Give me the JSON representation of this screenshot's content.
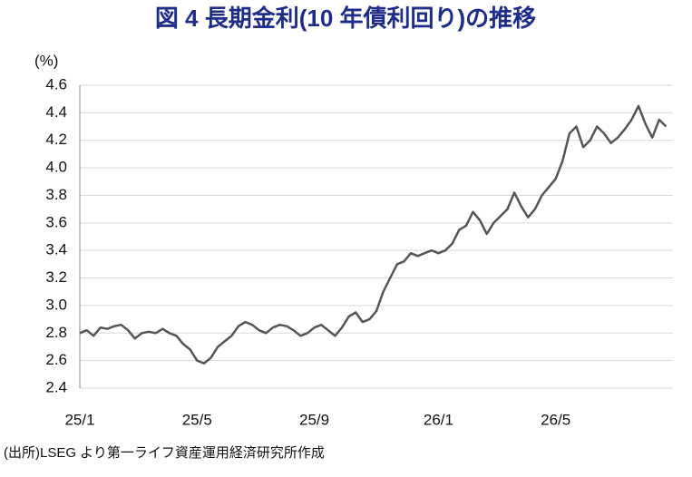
{
  "chart_data": {
    "type": "line",
    "title": "図 4  長期金利(10 年債利回り)の推移",
    "y_label": "(%)",
    "source": "(出所)LSEG より第一ライフ資産運用経済研究所作成",
    "color": "#555555",
    "grid": true,
    "ylim": [
      2.4,
      4.6
    ],
    "yticks": [
      2.4,
      2.6,
      2.8,
      {
        "value": 3.0,
        "label": "3.0"
      },
      3.2,
      3.4,
      3.6,
      3.8,
      {
        "value": 4.0,
        "label": "4.0"
      },
      4.2,
      4.4,
      4.6
    ],
    "categories": [
      "25/1",
      null,
      null,
      null,
      null,
      null,
      null,
      null,
      null,
      null,
      null,
      null,
      null,
      null,
      null,
      null,
      null,
      "25/5",
      null,
      null,
      null,
      null,
      null,
      null,
      null,
      null,
      null,
      null,
      null,
      null,
      null,
      null,
      null,
      null,
      "25/9",
      null,
      null,
      null,
      null,
      null,
      null,
      null,
      null,
      null,
      null,
      null,
      null,
      null,
      null,
      null,
      null,
      null,
      "26/1",
      null,
      null,
      null,
      null,
      null,
      null,
      null,
      null,
      null,
      null,
      null,
      null,
      null,
      null,
      null,
      null,
      "26/5",
      null,
      null,
      null,
      null,
      null,
      null,
      null,
      null,
      null,
      null,
      null,
      null,
      null,
      null,
      null,
      null
    ],
    "values": [
      2.8,
      2.82,
      2.78,
      2.84,
      2.83,
      2.85,
      2.86,
      2.82,
      2.76,
      2.8,
      2.81,
      2.8,
      2.83,
      2.8,
      2.78,
      2.72,
      2.68,
      2.6,
      2.58,
      2.62,
      2.7,
      2.74,
      2.78,
      2.85,
      2.88,
      2.86,
      2.82,
      2.8,
      2.84,
      2.86,
      2.85,
      2.82,
      2.78,
      2.8,
      2.84,
      2.86,
      2.82,
      2.78,
      2.84,
      2.92,
      2.95,
      2.88,
      2.9,
      2.96,
      3.1,
      3.2,
      3.3,
      3.32,
      3.38,
      3.36,
      3.38,
      3.4,
      3.38,
      3.4,
      3.45,
      3.55,
      3.58,
      3.68,
      3.62,
      3.52,
      3.6,
      3.65,
      3.7,
      3.82,
      3.72,
      3.64,
      3.7,
      3.8,
      3.86,
      3.92,
      4.05,
      4.25,
      4.3,
      4.15,
      4.2,
      4.3,
      4.25,
      4.18,
      4.22,
      4.28,
      4.35,
      4.45,
      4.32,
      4.22,
      4.35,
      4.3
    ]
  }
}
